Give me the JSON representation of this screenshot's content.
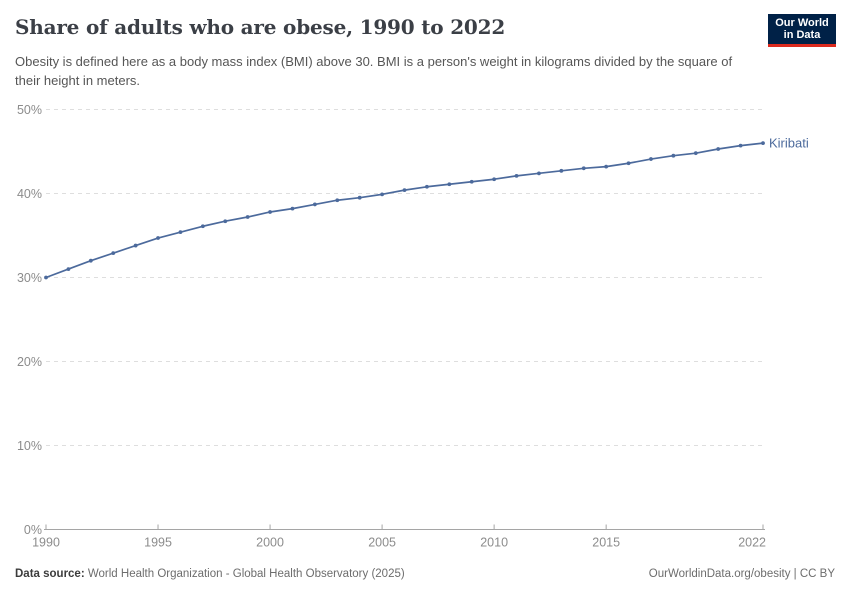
{
  "header": {
    "title": "Share of adults who are obese, 1990 to 2022",
    "subtitle": "Obesity is defined here as a body mass index (BMI) above 30. BMI is a person's weight in kilograms divided by the square of their height in meters.",
    "logo": {
      "line1": "Our World",
      "line2": "in Data"
    }
  },
  "chart_data": {
    "type": "line",
    "title": "Share of adults who are obese, 1990 to 2022",
    "x": [
      1990,
      1991,
      1992,
      1993,
      1994,
      1995,
      1996,
      1997,
      1998,
      1999,
      2000,
      2001,
      2002,
      2003,
      2004,
      2005,
      2006,
      2007,
      2008,
      2009,
      2010,
      2011,
      2012,
      2013,
      2014,
      2015,
      2016,
      2017,
      2018,
      2019,
      2020,
      2021,
      2022
    ],
    "series": [
      {
        "name": "Kiribati",
        "color": "#4C6A9C",
        "values": [
          30.0,
          31.0,
          32.0,
          32.9,
          33.8,
          34.7,
          35.4,
          36.1,
          36.7,
          37.2,
          37.8,
          38.2,
          38.7,
          39.2,
          39.5,
          39.9,
          40.4,
          40.8,
          41.1,
          41.4,
          41.7,
          42.1,
          42.4,
          42.7,
          43.0,
          43.2,
          43.6,
          44.1,
          44.5,
          44.8,
          45.3,
          45.7,
          46.0
        ]
      }
    ],
    "xlabel": "",
    "ylabel": "",
    "ylim": [
      0,
      50
    ],
    "xlim": [
      1990,
      2022
    ],
    "yticks": [
      0,
      10,
      20,
      30,
      40,
      50
    ],
    "ytick_labels": [
      "0%",
      "10%",
      "20%",
      "30%",
      "40%",
      "50%"
    ],
    "xticks": [
      1990,
      1995,
      2000,
      2005,
      2010,
      2015,
      2022
    ],
    "grid": "horizontal-dashed",
    "legend_position": "end-of-line-label",
    "end_label": "Kiribati"
  },
  "footer": {
    "datasource_label": "Data source:",
    "datasource_text": " World Health Organization - Global Health Observatory (2025)",
    "credit": "OurWorldinData.org/obesity | CC BY"
  },
  "colors": {
    "line": "#4C6A9C",
    "grid": "#dedede",
    "axis": "#a5a5a5",
    "tick_text": "#8c8c8c",
    "logo_bg": "#002147",
    "logo_red": "#dc2a1e"
  }
}
